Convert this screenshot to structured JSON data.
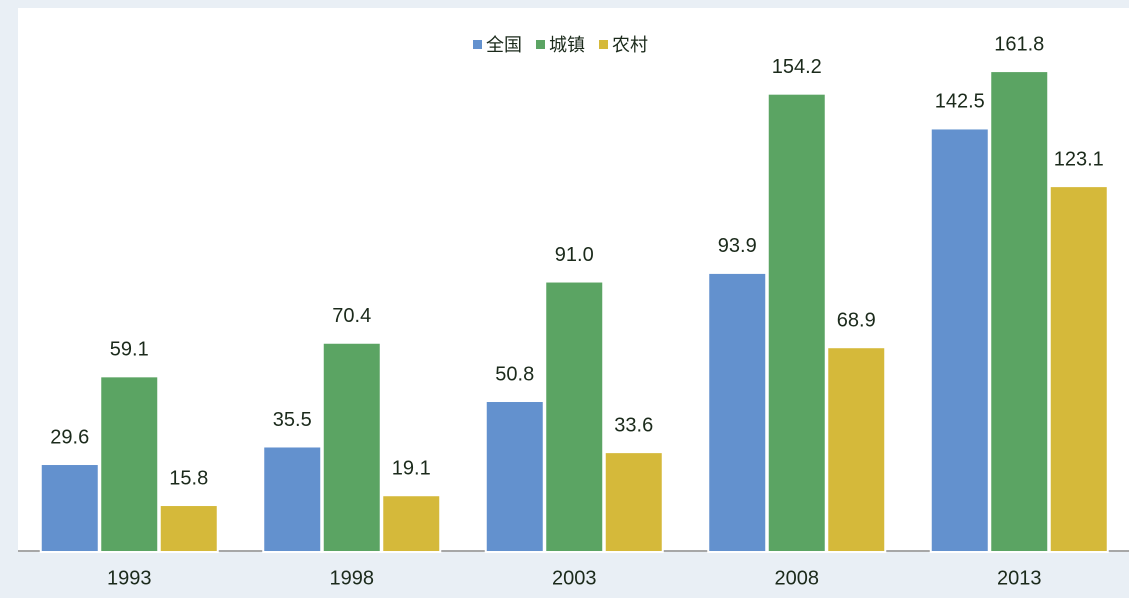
{
  "chart_data": {
    "type": "bar",
    "categories": [
      "1993",
      "1998",
      "2003",
      "2008",
      "2013"
    ],
    "series": [
      {
        "name": "全国",
        "color": "#6391ce",
        "values": [
          29.6,
          35.5,
          50.8,
          93.9,
          142.5
        ],
        "value_labels": [
          "29.6",
          "35.5",
          "50.8",
          "93.9",
          "142.5"
        ]
      },
      {
        "name": "城镇",
        "color": "#5ba463",
        "values": [
          59.1,
          70.4,
          91.0,
          154.2,
          161.8
        ],
        "value_labels": [
          "59.1",
          "70.4",
          "91.0",
          "154.2",
          "161.8"
        ]
      },
      {
        "name": "农村",
        "color": "#d5b93a",
        "values": [
          15.8,
          19.1,
          33.6,
          68.9,
          123.1
        ],
        "value_labels": [
          "15.8",
          "19.1",
          "33.6",
          "68.9",
          "123.1"
        ]
      }
    ],
    "ylim": [
      0,
      180
    ],
    "legend": "top"
  }
}
